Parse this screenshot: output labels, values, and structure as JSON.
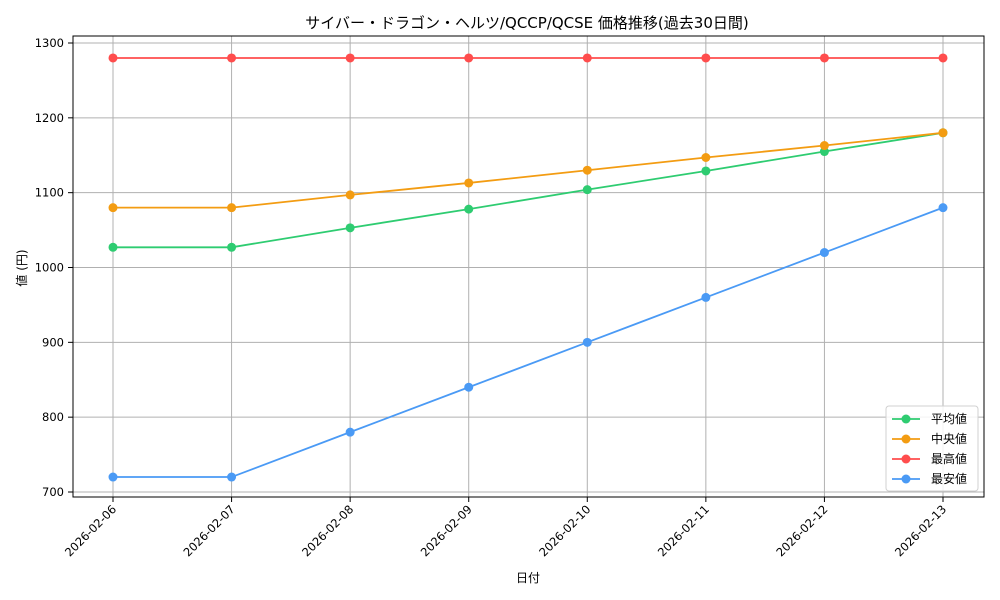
{
  "chart_data": {
    "type": "line",
    "title": "サイバー・ドラゴン・ヘルツ/QCCP/QCSE 価格推移(過去30日間)",
    "xlabel": "日付",
    "ylabel": "値 (円)",
    "categories": [
      "2026-02-06",
      "2026-02-07",
      "2026-02-08",
      "2026-02-09",
      "2026-02-10",
      "2026-02-11",
      "2026-02-12",
      "2026-02-13"
    ],
    "series": [
      {
        "name": "平均値",
        "color": "#2ecc71",
        "values": [
          1027,
          1027,
          1053,
          1078,
          1104,
          1129,
          1155,
          1180
        ]
      },
      {
        "name": "中央値",
        "color": "#f39c12",
        "values": [
          1080,
          1080,
          1097,
          1113,
          1130,
          1147,
          1163,
          1180
        ]
      },
      {
        "name": "最高値",
        "color": "#ff4d4d",
        "values": [
          1280,
          1280,
          1280,
          1280,
          1280,
          1280,
          1280,
          1280
        ]
      },
      {
        "name": "最安値",
        "color": "#4a9af5",
        "values": [
          720,
          720,
          780,
          840,
          900,
          960,
          1020,
          1080
        ]
      }
    ],
    "yticks": [
      700,
      800,
      900,
      1000,
      1100,
      1200,
      1300
    ],
    "ylim": [
      692,
      1308
    ],
    "grid": true,
    "legend_position": "lower right",
    "marker": "circle"
  }
}
